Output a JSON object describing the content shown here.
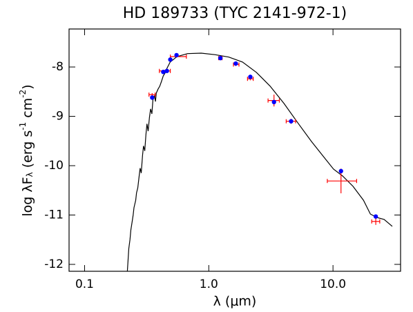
{
  "chart_data": {
    "type": "sed",
    "title": "HD 189733 (TYC 2141-972-1)",
    "xlabel": "λ (μm)",
    "ylabel": [
      {
        "text": "log λF"
      },
      {
        "text": "λ",
        "shift": "sub"
      },
      {
        "text": " (erg s"
      },
      {
        "text": "-1",
        "shift": "sup"
      },
      {
        "text": " cm"
      },
      {
        "text": "-2",
        "shift": "sup"
      },
      {
        "text": ")"
      }
    ],
    "xscale": "log",
    "xlim": [
      0.075,
      35
    ],
    "ylim": [
      -12.14,
      -7.23
    ],
    "xticks": [
      0.1,
      {
        "value": 1,
        "label": "1.0"
      },
      {
        "value": 10,
        "label": "10.0"
      }
    ],
    "yticks": [
      -8,
      -9,
      -10,
      -11,
      -12
    ],
    "model": {
      "color": "#000000",
      "x": [
        0.221,
        0.224,
        0.227,
        0.232,
        0.236,
        0.242,
        0.246,
        0.25,
        0.258,
        0.262,
        0.268,
        0.275,
        0.28,
        0.286,
        0.293,
        0.298,
        0.305,
        0.312,
        0.318,
        0.325,
        0.333,
        0.34,
        0.348,
        0.355,
        0.365,
        0.372,
        0.378,
        0.39,
        0.403,
        0.415,
        0.43,
        0.445,
        0.458,
        0.489,
        0.555,
        0.673,
        0.869,
        1.12,
        1.45,
        1.87,
        2.42,
        3.12,
        4.03,
        5.2,
        6.71,
        8.66,
        10.1,
        11.96,
        14.5,
        17.6,
        20.0,
        22.6,
        25.8,
        30.0
      ],
      "values": [
        -12.14,
        -11.9,
        -11.68,
        -11.5,
        -11.3,
        -11.12,
        -11.0,
        -10.85,
        -10.7,
        -10.55,
        -10.45,
        -10.21,
        -10.05,
        -10.15,
        -9.79,
        -9.6,
        -9.7,
        -9.37,
        -9.15,
        -9.3,
        -9.02,
        -8.85,
        -8.95,
        -8.67,
        -8.58,
        -8.7,
        -8.53,
        -8.45,
        -8.39,
        -8.3,
        -8.18,
        -8.12,
        -8.04,
        -7.9,
        -7.79,
        -7.73,
        -7.72,
        -7.75,
        -7.8,
        -7.9,
        -8.11,
        -8.39,
        -8.74,
        -9.13,
        -9.51,
        -9.86,
        -10.07,
        -10.21,
        -10.42,
        -10.7,
        -10.98,
        -11.05,
        -11.09,
        -11.23
      ]
    },
    "photometry": {
      "color": "#0000ff",
      "x": [
        0.35,
        0.43,
        0.46,
        0.49,
        0.55,
        1.24,
        1.65,
        2.16,
        3.35,
        4.6,
        11.6,
        22.1
      ],
      "values": [
        -8.62,
        -8.1,
        -8.08,
        -7.85,
        -7.76,
        -7.82,
        -7.93,
        -8.2,
        -8.71,
        -9.1,
        -10.11,
        -11.03
      ]
    },
    "observed": {
      "color": "#ff0000",
      "x": [
        0.35,
        0.44,
        0.55,
        1.24,
        1.65,
        2.16,
        3.35,
        4.6,
        11.6,
        22.1
      ],
      "x_lo": [
        0.33,
        0.4,
        0.49,
        1.2,
        1.58,
        2.05,
        3.0,
        4.2,
        9.0,
        20.5
      ],
      "x_hi": [
        0.37,
        0.49,
        0.66,
        1.28,
        1.75,
        2.28,
        3.7,
        5.0,
        15.5,
        23.8
      ],
      "values": [
        -8.56,
        -8.08,
        -7.79,
        -7.82,
        -7.95,
        -8.24,
        -8.68,
        -9.1,
        -10.31,
        -11.13
      ],
      "yerr": [
        0.03,
        0.02,
        0.02,
        0.02,
        0.03,
        0.03,
        0.12,
        0.05,
        0.25,
        0.07
      ]
    }
  }
}
